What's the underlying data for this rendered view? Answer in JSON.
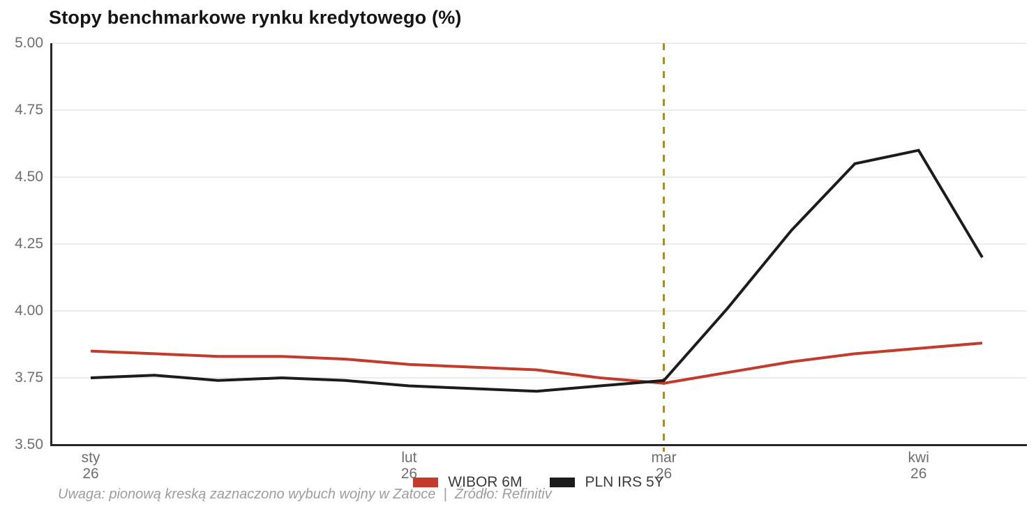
{
  "title": "Stopy benchmarkowe rynku kredytowego (%)",
  "footnote": "Uwaga: pionową kreską zaznaczono wybuch wojny w Zatoce  |  Źródło: Refinitiv",
  "legend": {
    "items": [
      {
        "label": "WIBOR 6M",
        "color": "#c23b2c"
      },
      {
        "label": "PLN IRS 5Y",
        "color": "#1c1c1c"
      }
    ]
  },
  "colors": {
    "wibor_line": "#c23b2c",
    "irs_line": "#1c1c1c",
    "event_line": "#a88c33",
    "gridline": "#ececec",
    "axis_spine": "#262626",
    "tick_text": "#6e6e6e",
    "footnote_text": "#9d9d9d"
  },
  "chart_data": {
    "type": "line",
    "x_count": 15,
    "xticks": [
      {
        "index": 0,
        "line1": "sty",
        "line2": "26"
      },
      {
        "index": 5,
        "line1": "lut",
        "line2": "26"
      },
      {
        "index": 9,
        "line1": "mar",
        "line2": "26"
      },
      {
        "index": 13,
        "line1": "kwi",
        "line2": "26"
      }
    ],
    "yticks": [
      "5.00",
      "4.75",
      "4.50",
      "4.25",
      "4.00",
      "3.75",
      "3.50"
    ],
    "ylim": [
      3.5,
      5.0
    ],
    "grid": "horizontal",
    "legend_position": "bottom-center",
    "series": [
      {
        "name": "WIBOR 6M",
        "color": "#c23b2c",
        "values": [
          3.85,
          3.84,
          3.83,
          3.83,
          3.82,
          3.8,
          3.79,
          3.78,
          3.75,
          3.73,
          3.77,
          3.81,
          3.84,
          3.86,
          3.88
        ]
      },
      {
        "name": "PLN IRS 5Y",
        "color": "#1c1c1c",
        "values": [
          3.75,
          3.76,
          3.74,
          3.75,
          3.74,
          3.72,
          3.71,
          3.7,
          3.72,
          3.74,
          4.01,
          4.3,
          4.55,
          4.6,
          4.2
        ]
      }
    ],
    "event_line": {
      "index": 9,
      "color": "#a88c33",
      "style": "dashed"
    }
  }
}
